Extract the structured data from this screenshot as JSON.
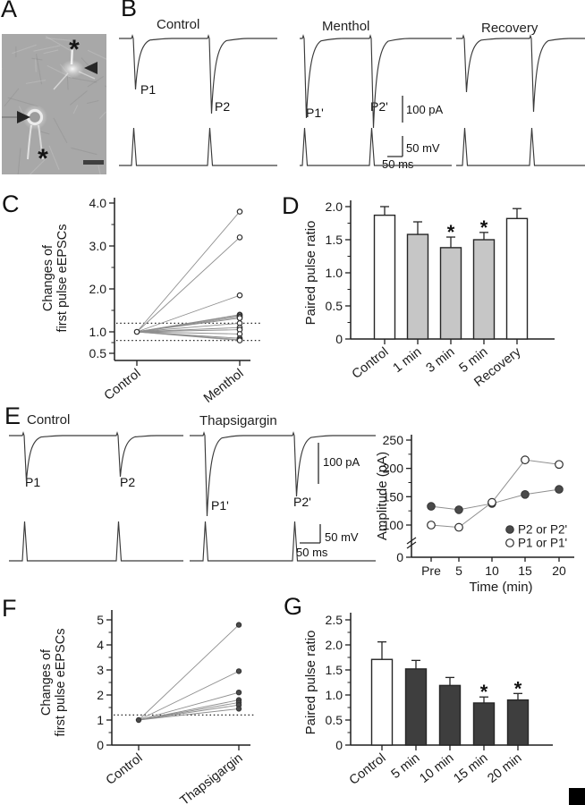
{
  "panels": {
    "a": "A",
    "b": "B",
    "c": "C",
    "d": "D",
    "e": "E",
    "f": "F",
    "g": "G"
  },
  "panel_a": {
    "asterisk": "*"
  },
  "panel_b": {
    "groups": [
      {
        "label": "Control",
        "pulses": [
          {
            "name": "P1",
            "depth": 57
          },
          {
            "name": "P2",
            "depth": 84
          }
        ]
      },
      {
        "label": "Menthol",
        "pulses": [
          {
            "name": "P1'",
            "depth": 89
          },
          {
            "name": "P2'",
            "depth": 100
          }
        ]
      },
      {
        "label": "Recovery",
        "pulses": [
          {
            "name": "",
            "depth": 60
          },
          {
            "name": "",
            "depth": 82
          }
        ]
      }
    ],
    "scales": {
      "current": "100 pA",
      "voltage": "50 mV",
      "time": "50 ms"
    }
  },
  "panel_e_traces": {
    "groups": [
      {
        "label": "Control",
        "pulses": [
          {
            "name": "P1",
            "depth": 51
          },
          {
            "name": "P2",
            "depth": 46
          }
        ]
      },
      {
        "label": "Thapsigargin",
        "pulses": [
          {
            "name": "P1'",
            "depth": 90
          },
          {
            "name": "P2'",
            "depth": 68
          }
        ]
      }
    ],
    "scales": {
      "current": "100 pA",
      "voltage": "50 mV",
      "time": "50 ms"
    }
  },
  "chart_data": [
    {
      "id": "c",
      "type": "paired-line",
      "ylabel_lines": [
        "Changes of",
        "first pulse eEPSCs"
      ],
      "categories": [
        "Control",
        "Menthol"
      ],
      "control_value": 1.0,
      "values": [
        3.8,
        3.2,
        1.85,
        1.4,
        1.38,
        1.35,
        1.32,
        1.2,
        1.1,
        1.05,
        0.95,
        0.85,
        0.82,
        0.8
      ],
      "reference_lines": [
        1.2,
        0.8
      ],
      "ylim": [
        0.5,
        4.0
      ],
      "yticks": [
        {
          "v": 0.5,
          "label": "0.5"
        },
        {
          "v": 1.0,
          "label": "1.0"
        },
        {
          "v": 2.0,
          "label": "2.0"
        },
        {
          "v": 3.0,
          "label": "3.0"
        },
        {
          "v": 4.0,
          "label": "4.0"
        }
      ],
      "marker": "open"
    },
    {
      "id": "d",
      "type": "bar",
      "ylabel": "Paired pulse ratio",
      "categories": [
        "Control",
        "1 min",
        "3 min",
        "5 min",
        "Recovery"
      ],
      "values": [
        1.87,
        1.58,
        1.38,
        1.5,
        1.82
      ],
      "errors": [
        0.13,
        0.19,
        0.16,
        0.11,
        0.15
      ],
      "bar_fills": [
        "white",
        "gray",
        "gray",
        "gray",
        "white"
      ],
      "significance": [
        false,
        false,
        true,
        true,
        false
      ],
      "ylim": [
        0,
        2.0
      ],
      "yticks": [
        {
          "v": 0,
          "label": "0"
        },
        {
          "v": 0.5,
          "label": "0.5"
        },
        {
          "v": 1.0,
          "label": "1.0"
        },
        {
          "v": 1.5,
          "label": "1.5"
        },
        {
          "v": 2.0,
          "label": "2.0"
        }
      ]
    },
    {
      "id": "e",
      "type": "line",
      "ylabel": "Amplitude (pA)",
      "xlabel": "Time (min)",
      "categories": [
        "Pre",
        "5",
        "10",
        "15",
        "20"
      ],
      "series": [
        {
          "name": "P2 or P2'",
          "marker": "filled",
          "values": [
            133,
            127,
            138,
            154,
            163
          ]
        },
        {
          "name": "P1 or P1'",
          "marker": "open",
          "values": [
            100,
            96,
            140,
            215,
            207
          ]
        }
      ],
      "axis_break": true,
      "legend_position": "inside-right",
      "ylim": [
        0,
        250
      ],
      "yticks": [
        {
          "v": 0,
          "label": "0"
        },
        {
          "v": 100,
          "label": "100"
        },
        {
          "v": 150,
          "label": "150"
        },
        {
          "v": 200,
          "label": "200"
        },
        {
          "v": 250,
          "label": "250"
        }
      ]
    },
    {
      "id": "f",
      "type": "paired-line",
      "ylabel_lines": [
        "Changes of",
        "first pulse eEPSCs"
      ],
      "categories": [
        "Control",
        "Thapsigargin"
      ],
      "control_value": 1.0,
      "values": [
        4.8,
        2.95,
        2.1,
        1.8,
        1.7,
        1.6,
        1.45
      ],
      "reference_lines": [
        1.2
      ],
      "ylim": [
        0,
        5
      ],
      "yticks": [
        {
          "v": 0,
          "label": "0"
        },
        {
          "v": 1,
          "label": "1"
        },
        {
          "v": 2,
          "label": "2"
        },
        {
          "v": 3,
          "label": "3"
        },
        {
          "v": 4,
          "label": "4"
        },
        {
          "v": 5,
          "label": "5"
        }
      ],
      "marker": "filled"
    },
    {
      "id": "g",
      "type": "bar",
      "ylabel": "Paired pulse ratio",
      "categories": [
        "Control",
        "5 min",
        "10 min",
        "15 min",
        "20 min"
      ],
      "values": [
        1.71,
        1.52,
        1.19,
        0.84,
        0.9
      ],
      "errors": [
        0.35,
        0.17,
        0.16,
        0.12,
        0.13
      ],
      "bar_fills": [
        "white",
        "dark",
        "dark",
        "dark",
        "dark"
      ],
      "significance": [
        false,
        false,
        false,
        true,
        true
      ],
      "ylim": [
        0,
        2.5
      ],
      "yticks": [
        {
          "v": 0,
          "label": "0"
        },
        {
          "v": 0.5,
          "label": "0.5"
        },
        {
          "v": 1.0,
          "label": "1.0"
        },
        {
          "v": 1.5,
          "label": "1.5"
        },
        {
          "v": 2.0,
          "label": "2.0"
        },
        {
          "v": 2.5,
          "label": "2.5"
        }
      ]
    }
  ]
}
